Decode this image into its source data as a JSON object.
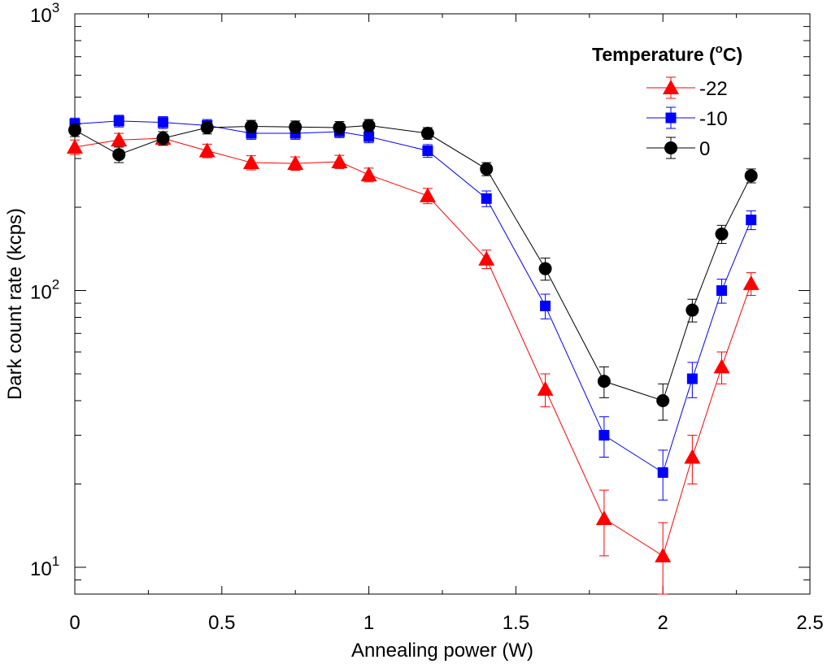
{
  "chart_data": {
    "type": "line",
    "xlabel": "Annealing power (W)",
    "ylabel": "Dark count rate (kcps)",
    "xlim": [
      0,
      2.5
    ],
    "ylim": [
      8,
      1000
    ],
    "yscale": "log",
    "grid": false,
    "x_ticks": [
      "0",
      "0.5",
      "1",
      "1.5",
      "2",
      "2.5"
    ],
    "y_ticks": [
      {
        "base": "10",
        "exp": "1"
      },
      {
        "base": "10",
        "exp": "2"
      },
      {
        "base": "10",
        "exp": "3"
      }
    ],
    "legend": {
      "title_main": "Temperature (",
      "title_sup": "o",
      "title_end": "C)",
      "position": "top-right"
    },
    "x": [
      0,
      0.15,
      0.3,
      0.45,
      0.6,
      0.75,
      0.9,
      1.0,
      1.2,
      1.4,
      1.6,
      1.8,
      2.0,
      2.1,
      2.2,
      2.3
    ],
    "series": [
      {
        "name": "-22",
        "color": "#ff0000",
        "marker": "triangle",
        "values": [
          330,
          350,
          355,
          320,
          290,
          288,
          292,
          262,
          220,
          130,
          44,
          15,
          11,
          25,
          53,
          106
        ],
        "err": [
          20,
          20,
          20,
          18,
          17,
          16,
          16,
          15,
          14,
          10,
          6,
          4,
          3.5,
          5,
          7,
          10
        ]
      },
      {
        "name": "-10",
        "color": "#0000ff",
        "marker": "square",
        "values": [
          400,
          410,
          405,
          395,
          370,
          370,
          375,
          360,
          320,
          215,
          88,
          30,
          22,
          48,
          100,
          180
        ],
        "err": [
          20,
          20,
          20,
          20,
          18,
          18,
          18,
          18,
          17,
          14,
          9,
          5,
          4.5,
          7,
          10,
          14
        ]
      },
      {
        "name": "0",
        "color": "#000000",
        "marker": "circle",
        "values": [
          380,
          310,
          355,
          388,
          392,
          390,
          388,
          395,
          370,
          275,
          120,
          47,
          40,
          85,
          160,
          260
        ],
        "err": [
          20,
          20,
          20,
          20,
          20,
          20,
          20,
          20,
          18,
          15,
          11,
          6,
          6,
          8,
          12,
          15
        ]
      }
    ]
  }
}
